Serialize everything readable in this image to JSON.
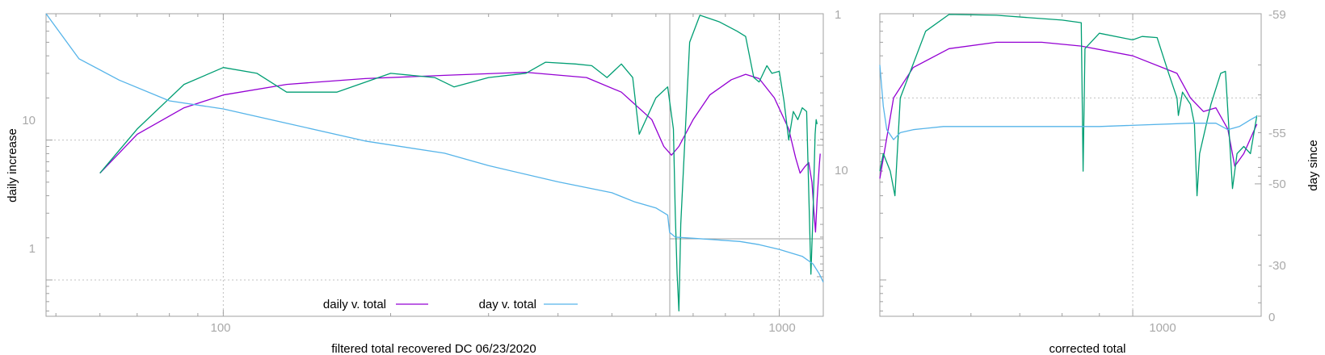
{
  "colors": {
    "daily": "#9400d3",
    "day": "#56b4e9",
    "raw": "#009e73",
    "axis": "#a0a0a0",
    "grid": "#c0c0c0"
  },
  "chart_data": [
    {
      "type": "line",
      "title": "",
      "xlabel": "filtered total recovered DC 06/23/2020",
      "ylabel": "daily increase",
      "x_scale": "log",
      "y_scale": "log",
      "xlim": [
        48,
        1200
      ],
      "ylim": [
        0.55,
        80
      ],
      "y2lim": [
        1,
        200
      ],
      "x_ticks": [
        "100",
        "1000"
      ],
      "y_ticks": [
        "1",
        "10"
      ],
      "y2_ticks": [
        "1",
        "10"
      ],
      "grid": true,
      "legend": "bottom-center",
      "series": [
        {
          "name": "daily v. total",
          "color": "#9400d3",
          "axis": "left",
          "points": [
            [
              60,
              5.8
            ],
            [
              70,
              11
            ],
            [
              85,
              17
            ],
            [
              100,
              21
            ],
            [
              130,
              25
            ],
            [
              180,
              27.5
            ],
            [
              250,
              29
            ],
            [
              350,
              30.5
            ],
            [
              450,
              28
            ],
            [
              520,
              22
            ],
            [
              590,
              14
            ],
            [
              620,
              9
            ],
            [
              640,
              7.8
            ],
            [
              660,
              9
            ],
            [
              700,
              14
            ],
            [
              750,
              21
            ],
            [
              820,
              27
            ],
            [
              870,
              29.5
            ],
            [
              920,
              27.5
            ],
            [
              980,
              20
            ],
            [
              1040,
              12
            ],
            [
              1070,
              7.5
            ],
            [
              1090,
              5.8
            ],
            [
              1110,
              6.4
            ],
            [
              1130,
              6.9
            ],
            [
              1145,
              5
            ],
            [
              1155,
              3
            ],
            [
              1162,
              2.2
            ],
            [
              1170,
              3.8
            ],
            [
              1180,
              6.5
            ],
            [
              1185,
              8
            ]
          ]
        },
        {
          "name": "",
          "color": "#009e73",
          "axis": "left",
          "points": [
            [
              60,
              5.8
            ],
            [
              70,
              12
            ],
            [
              85,
              25
            ],
            [
              100,
              33
            ],
            [
              115,
              30
            ],
            [
              130,
              22
            ],
            [
              160,
              22
            ],
            [
              200,
              30
            ],
            [
              240,
              28
            ],
            [
              260,
              24
            ],
            [
              300,
              28
            ],
            [
              350,
              30
            ],
            [
              380,
              36
            ],
            [
              430,
              35
            ],
            [
              460,
              34
            ],
            [
              490,
              28
            ],
            [
              520,
              35
            ],
            [
              545,
              28
            ],
            [
              560,
              11
            ],
            [
              600,
              20
            ],
            [
              630,
              24
            ],
            [
              645,
              12
            ],
            [
              650,
              3
            ],
            [
              655,
              1.1
            ],
            [
              660,
              0.6
            ],
            [
              665,
              2.5
            ],
            [
              690,
              50
            ],
            [
              720,
              78
            ],
            [
              780,
              70
            ],
            [
              840,
              60
            ],
            [
              870,
              55
            ],
            [
              900,
              28
            ],
            [
              920,
              26
            ],
            [
              950,
              34
            ],
            [
              970,
              30
            ],
            [
              1000,
              31
            ],
            [
              1020,
              19
            ],
            [
              1040,
              10
            ],
            [
              1060,
              16
            ],
            [
              1080,
              14
            ],
            [
              1100,
              17
            ],
            [
              1120,
              16
            ],
            [
              1140,
              1.1
            ],
            [
              1150,
              3
            ],
            [
              1160,
              11
            ],
            [
              1165,
              14
            ],
            [
              1170,
              13
            ]
          ]
        },
        {
          "name": "day v. total",
          "color": "#56b4e9",
          "axis": "right",
          "points": [
            [
              48,
              1
            ],
            [
              55,
              2.2
            ],
            [
              65,
              3.2
            ],
            [
              80,
              4.6
            ],
            [
              100,
              5.3
            ],
            [
              130,
              6.8
            ],
            [
              180,
              9.3
            ],
            [
              250,
              11.5
            ],
            [
              300,
              14.3
            ],
            [
              400,
              19
            ],
            [
              500,
              23
            ],
            [
              550,
              27
            ],
            [
              600,
              30
            ],
            [
              630,
              34
            ],
            [
              635,
              46
            ],
            [
              650,
              50
            ],
            [
              700,
              51
            ],
            [
              850,
              54
            ],
            [
              920,
              57
            ],
            [
              1000,
              62
            ],
            [
              1100,
              70
            ],
            [
              1150,
              80
            ],
            [
              1180,
              95
            ],
            [
              1200,
              110
            ]
          ]
        }
      ]
    },
    {
      "type": "line",
      "title": "",
      "xlabel": "corrected total",
      "ylabel": "day since",
      "x_scale": "log",
      "y_scale": "log",
      "xlim": [
        450,
        1500
      ],
      "ylim": [
        0.55,
        80
      ],
      "y2_ticks": [
        "-59",
        "-55",
        "-50",
        "-30",
        "0"
      ],
      "x_ticks": [
        "1000"
      ],
      "grid": true,
      "series": [
        {
          "name": "",
          "color": "#9400d3",
          "axis": "left",
          "points": [
            [
              450,
              5.3
            ],
            [
              470,
              20
            ],
            [
              500,
              33
            ],
            [
              560,
              45
            ],
            [
              650,
              50
            ],
            [
              750,
              50
            ],
            [
              850,
              47
            ],
            [
              1000,
              40
            ],
            [
              1150,
              30
            ],
            [
              1200,
              20
            ],
            [
              1250,
              16
            ],
            [
              1300,
              17
            ],
            [
              1350,
              12
            ],
            [
              1380,
              6.5
            ],
            [
              1420,
              8
            ],
            [
              1480,
              13
            ]
          ]
        },
        {
          "name": "",
          "color": "#009e73",
          "axis": "left",
          "points": [
            [
              450,
              6
            ],
            [
              455,
              8
            ],
            [
              465,
              6
            ],
            [
              472,
              4
            ],
            [
              480,
              20
            ],
            [
              520,
              60
            ],
            [
              560,
              79
            ],
            [
              650,
              78
            ],
            [
              800,
              72
            ],
            [
              850,
              69
            ],
            [
              855,
              6
            ],
            [
              860,
              45
            ],
            [
              900,
              58
            ],
            [
              1000,
              52
            ],
            [
              1030,
              55
            ],
            [
              1080,
              54
            ],
            [
              1120,
              30
            ],
            [
              1150,
              20
            ],
            [
              1155,
              15
            ],
            [
              1170,
              22
            ],
            [
              1200,
              18
            ],
            [
              1215,
              13
            ],
            [
              1225,
              4
            ],
            [
              1235,
              8
            ],
            [
              1280,
              18
            ],
            [
              1320,
              30
            ],
            [
              1340,
              31
            ],
            [
              1370,
              4.5
            ],
            [
              1390,
              8
            ],
            [
              1420,
              9
            ],
            [
              1450,
              8
            ],
            [
              1480,
              15
            ]
          ]
        },
        {
          "name": "",
          "color": "#56b4e9",
          "axis": "right",
          "points": [
            [
              450,
              -58
            ],
            [
              455,
              -56.5
            ],
            [
              460,
              -55.2
            ],
            [
              470,
              -54.5
            ],
            [
              480,
              -55
            ],
            [
              500,
              -55.2
            ],
            [
              550,
              -55.4
            ],
            [
              900,
              -55.4
            ],
            [
              1200,
              -55.6
            ],
            [
              1300,
              -55.6
            ],
            [
              1350,
              -55.2
            ],
            [
              1400,
              -55.4
            ],
            [
              1450,
              -55.8
            ],
            [
              1480,
              -56
            ]
          ]
        }
      ]
    }
  ],
  "legend": [
    {
      "label": "daily v. total",
      "color": "#9400d3"
    },
    {
      "label": "day v. total",
      "color": "#56b4e9"
    }
  ]
}
